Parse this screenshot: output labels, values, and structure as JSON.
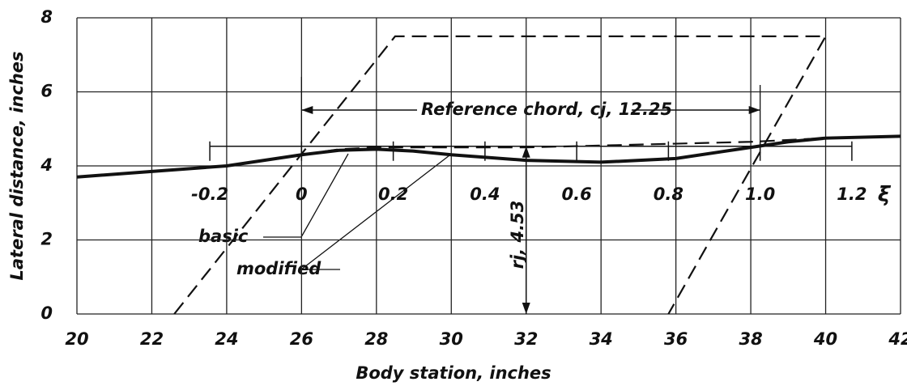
{
  "chart_data": {
    "type": "line",
    "xlabel": "Body  station, inches",
    "ylabel": "Lateral distance, inches",
    "xlim": [
      20,
      42
    ],
    "ylim": [
      0,
      8
    ],
    "xticks": [
      20,
      22,
      24,
      26,
      28,
      30,
      32,
      34,
      36,
      38,
      40,
      42
    ],
    "yticks": [
      0,
      2,
      4,
      6,
      8
    ],
    "grid": true,
    "series": [
      {
        "name": "modified",
        "color": "#111",
        "dash": "solid",
        "x": [
          20,
          22,
          24,
          26,
          27,
          28,
          29,
          30,
          32,
          34,
          36,
          38,
          39,
          40,
          42
        ],
        "values": [
          3.7,
          3.85,
          4.0,
          4.3,
          4.42,
          4.45,
          4.4,
          4.3,
          4.15,
          4.1,
          4.2,
          4.5,
          4.65,
          4.75,
          4.8
        ]
      },
      {
        "name": "basic",
        "color": "#111",
        "dash": "dashed",
        "x": [
          26,
          27,
          28,
          30,
          32,
          34,
          36,
          38,
          40
        ],
        "values": [
          4.3,
          4.45,
          4.5,
          4.5,
          4.5,
          4.55,
          4.6,
          4.65,
          4.75
        ]
      },
      {
        "color": "#111",
        "dash": "dashed",
        "x": [
          22.6,
          28.5,
          40,
          35.8
        ],
        "values": [
          0,
          7.5,
          7.5,
          0
        ]
      }
    ],
    "xi_axis": {
      "origin": 26,
      "chord": 12.25,
      "label": "ξ",
      "ticks": [
        -0.2,
        0,
        0.2,
        0.4,
        0.6,
        0.8,
        {
          "value": 1,
          "label": "1.0"
        },
        1.2
      ]
    },
    "radius": {
      "x": 32,
      "value": 4.53
    },
    "annotations": [
      "Reference chord, cj, 12.25",
      "rj, 4.53",
      "basic",
      "modified"
    ]
  }
}
